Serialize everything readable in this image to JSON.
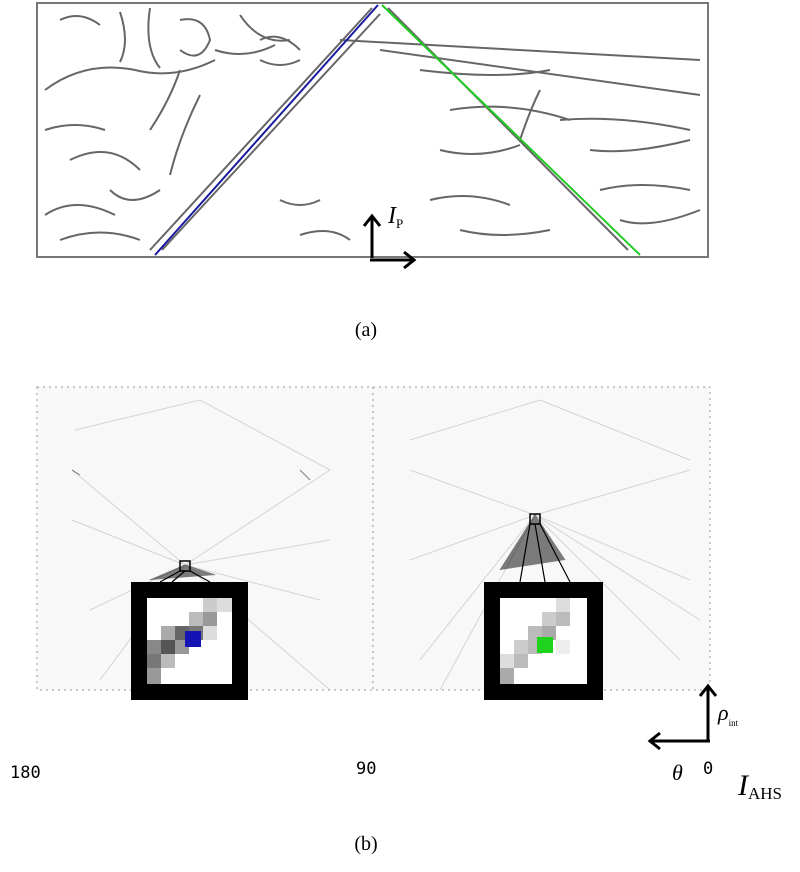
{
  "panel_a": {
    "caption": "(a)",
    "label": {
      "main": "I",
      "sub": "P"
    }
  },
  "panel_b": {
    "caption": "(b)",
    "ticks": [
      "180",
      "90",
      "0"
    ],
    "theta": "θ",
    "rho": {
      "main": "ρ",
      "sub": "int"
    },
    "ahs": {
      "main": "I",
      "sub": "AHS"
    }
  }
}
